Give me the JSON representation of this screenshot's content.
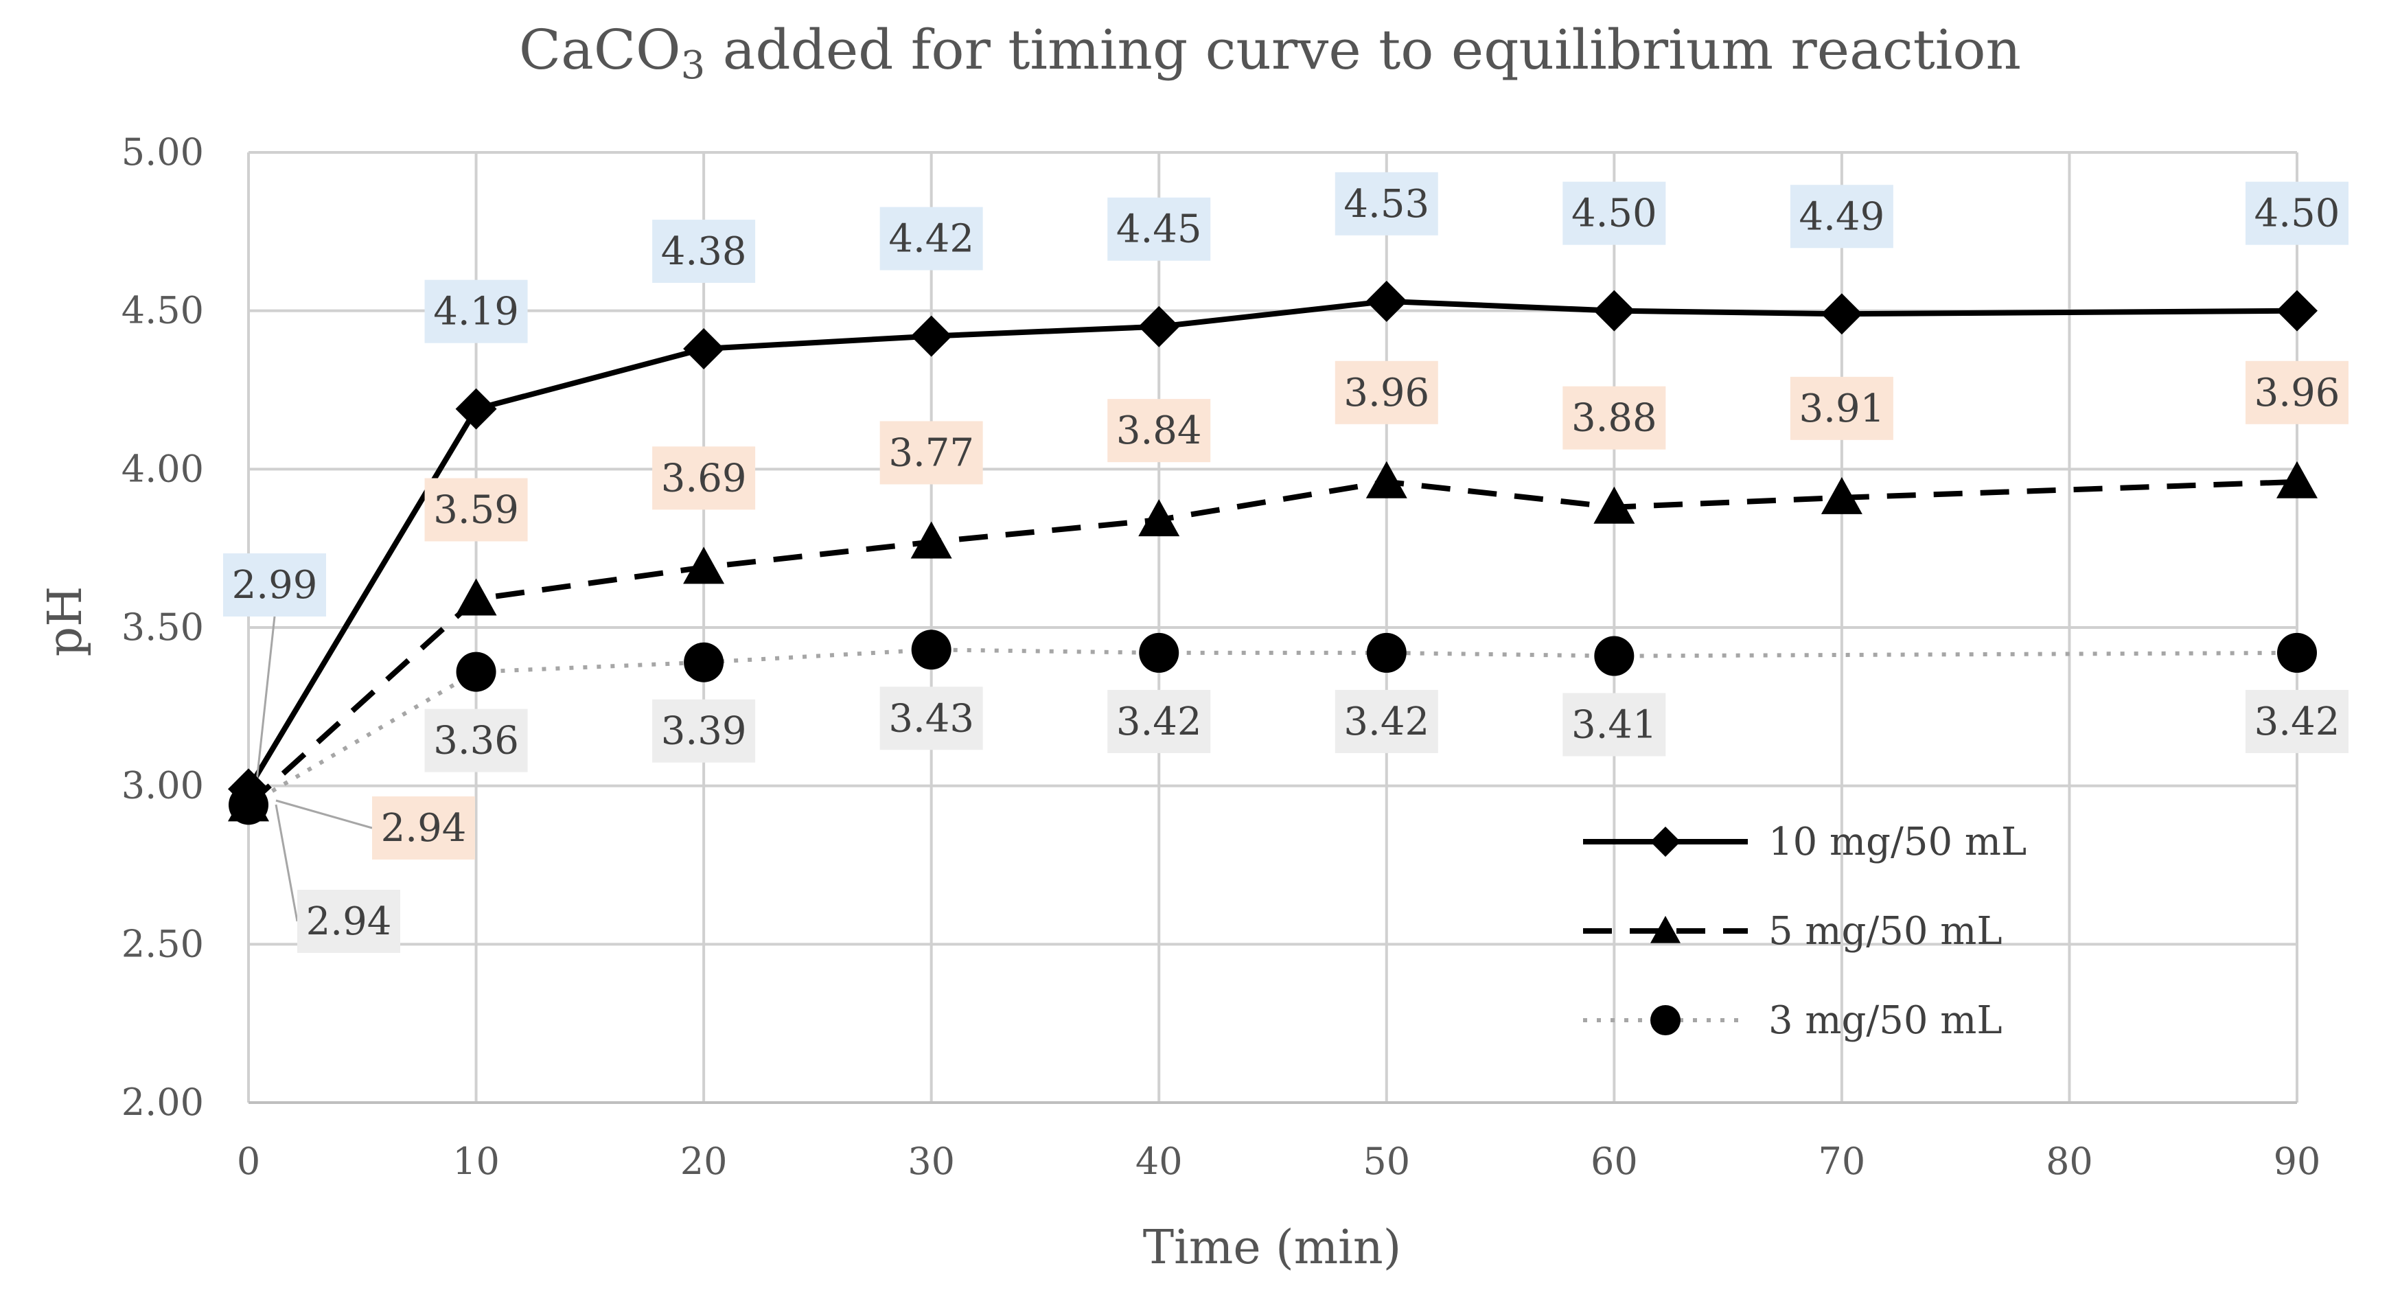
{
  "chart_data": {
    "type": "line",
    "title": {
      "prefix": "CaCO",
      "subscript": "3",
      "suffix": " added  for timing curve to equilibrium reaction"
    },
    "xlabel": "Time (min)",
    "ylabel": "pH",
    "xlim": [
      0,
      90
    ],
    "ylim": [
      2.0,
      5.0
    ],
    "x_ticks": [
      "0",
      "10",
      "20",
      "30",
      "40",
      "50",
      "60",
      "70",
      "80",
      "90"
    ],
    "y_ticks": [
      "2.00",
      "2.50",
      "3.00",
      "3.50",
      "4.00",
      "4.50",
      "5.00"
    ],
    "grid": true,
    "legend_position": "lower-right",
    "series": [
      {
        "name": "10 mg/50 mL",
        "marker": "diamond",
        "line_style": "solid",
        "line_color": "#000000",
        "label_bg": "#deebf7",
        "x": [
          0,
          10,
          20,
          30,
          40,
          50,
          60,
          70,
          90
        ],
        "values": [
          2.99,
          4.19,
          4.38,
          4.42,
          4.45,
          4.53,
          4.5,
          4.49,
          4.5
        ],
        "labels": [
          "2.99",
          "4.19",
          "4.38",
          "4.42",
          "4.45",
          "4.53",
          "4.50",
          "4.49",
          "4.50"
        ]
      },
      {
        "name": "5 mg/50 mL",
        "marker": "triangle",
        "line_style": "dashed",
        "line_color": "#000000",
        "label_bg": "#fbe5d6",
        "x": [
          0,
          10,
          20,
          30,
          40,
          50,
          60,
          70,
          90
        ],
        "values": [
          2.94,
          3.59,
          3.69,
          3.77,
          3.84,
          3.96,
          3.88,
          3.91,
          3.96
        ],
        "labels": [
          "2.94",
          "3.59",
          "3.69",
          "3.77",
          "3.84",
          "3.96",
          "3.88",
          "3.91",
          "3.96"
        ]
      },
      {
        "name": "3 mg/50 mL",
        "marker": "circle",
        "line_style": "dotted",
        "line_color": "#a6a6a6",
        "label_bg": "#ededed",
        "x": [
          0,
          10,
          20,
          30,
          40,
          50,
          60,
          90
        ],
        "values": [
          2.94,
          3.36,
          3.39,
          3.43,
          3.42,
          3.42,
          3.41,
          3.42
        ],
        "labels": [
          "2.94",
          "3.36",
          "3.39",
          "3.43",
          "3.42",
          "3.42",
          "3.41",
          "3.42"
        ]
      }
    ]
  }
}
